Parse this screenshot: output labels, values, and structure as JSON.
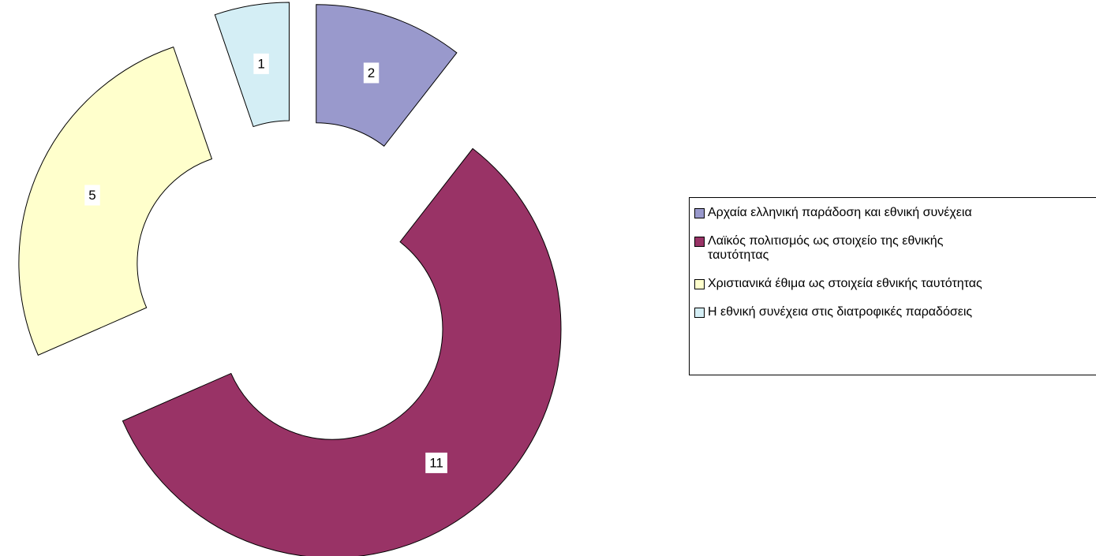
{
  "chart_data": {
    "type": "doughnut",
    "categories": [
      "Αρχαία ελληνική παράδοση και εθνική συνέχεια",
      "Λαϊκός πολιτισμός ως στοιχείο της εθνικής ταυτότητας",
      "Χριστιανικά έθιμα ως στοιχεία εθνικής ταυτότητας",
      "Η εθνική συνέχεια στις διατροφικές παραδόσεις"
    ],
    "values": [
      2,
      11,
      5,
      1
    ],
    "colors": [
      "#9999cc",
      "#993366",
      "#ffffcc",
      "#d4eef5"
    ],
    "exploded": true,
    "legend": "right"
  }
}
